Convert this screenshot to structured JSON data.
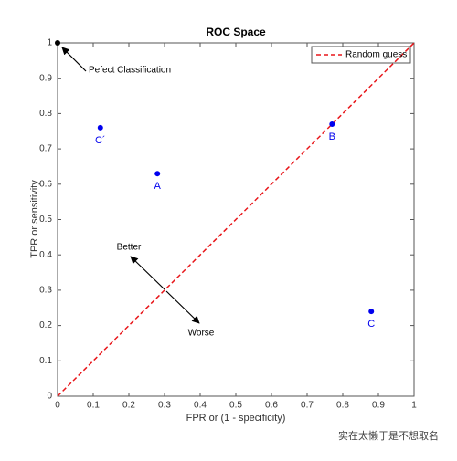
{
  "chart_data": {
    "type": "scatter",
    "title": "ROC Space",
    "x_label": "FPR or (1 - specificity)",
    "y_label": "TPR or sensitivity",
    "xlim": [
      0,
      1
    ],
    "ylim": [
      0,
      1
    ],
    "xticks": [
      0,
      0.1,
      0.2,
      0.3,
      0.4,
      0.5,
      0.6,
      0.7,
      0.8,
      0.9,
      1
    ],
    "yticks": [
      0,
      0.1,
      0.2,
      0.3,
      0.4,
      0.5,
      0.6,
      0.7,
      0.8,
      0.9,
      1
    ],
    "series": [
      {
        "name": "Random guess",
        "color": "#e8161a",
        "dashed": true,
        "x": [
          0,
          1
        ],
        "values": [
          0,
          1
        ]
      }
    ],
    "points": {
      "color": "#0000ee",
      "labels": [
        "C´",
        "A",
        "B",
        "C"
      ],
      "x": [
        0.12,
        0.28,
        0.77,
        0.88
      ],
      "values": [
        0.76,
        0.63,
        0.77,
        0.24
      ]
    },
    "perfect": {
      "color": "#000000",
      "label": "Pefect Classification",
      "x": 0,
      "value": 1
    },
    "annotations": [
      "Better",
      "Worse"
    ],
    "legend": "upper right",
    "watermark": "实在太懒于是不想取名"
  }
}
